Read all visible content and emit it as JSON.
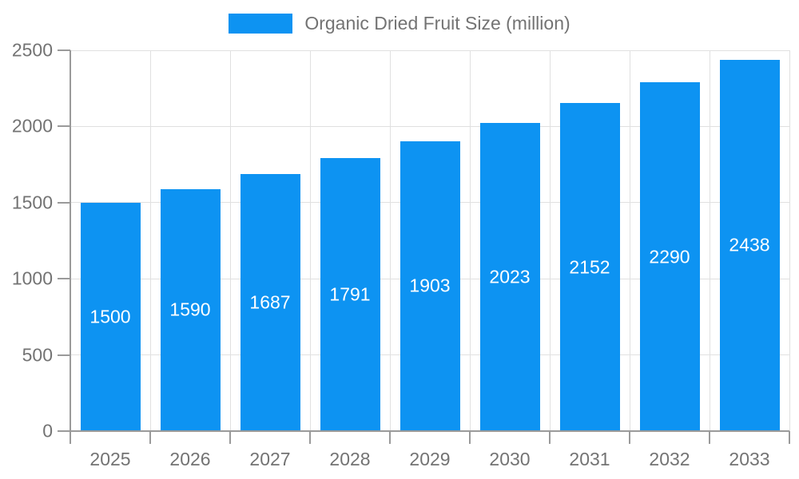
{
  "chart_data": {
    "type": "bar",
    "title": "Organic Dried Fruit Size (million)",
    "legend": {
      "position": "top",
      "label": "Organic Dried Fruit Size (million)"
    },
    "categories": [
      "2025",
      "2026",
      "2027",
      "2028",
      "2029",
      "2030",
      "2031",
      "2032",
      "2033"
    ],
    "values": [
      1500,
      1590,
      1687,
      1791,
      1903,
      2023,
      2152,
      2290,
      2438
    ],
    "value_labels_shown": true,
    "xlabel": "",
    "ylabel": "",
    "ylim": [
      0,
      2500
    ],
    "yticks": [
      0,
      500,
      1000,
      1500,
      2000,
      2500
    ],
    "grid": true,
    "colors": {
      "bar": "#0d93f2",
      "axis": "#9a9a9a",
      "grid": "#e0e0e0",
      "text": "#737373",
      "value_text": "#ffffff",
      "background": "#ffffff"
    }
  }
}
